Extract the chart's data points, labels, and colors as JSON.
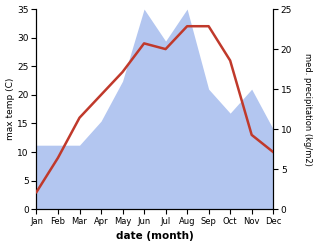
{
  "months": [
    "Jan",
    "Feb",
    "Mar",
    "Apr",
    "May",
    "Jun",
    "Jul",
    "Aug",
    "Sep",
    "Oct",
    "Nov",
    "Dec"
  ],
  "temperature": [
    3,
    9,
    16,
    20,
    24,
    29,
    28,
    32,
    32,
    26,
    13,
    10
  ],
  "precipitation": [
    8,
    8,
    8,
    11,
    16,
    25,
    21,
    25,
    15,
    12,
    15,
    10
  ],
  "temp_color": "#c0392b",
  "precip_color": "#b3c6f0",
  "ylim_temp": [
    0,
    35
  ],
  "ylim_precip": [
    0,
    25
  ],
  "ylabel_left": "max temp (C)",
  "ylabel_right": "med. precipitation (kg/m2)",
  "xlabel": "date (month)",
  "temp_yticks": [
    0,
    5,
    10,
    15,
    20,
    25,
    30,
    35
  ],
  "precip_yticks": [
    0,
    5,
    10,
    15,
    20,
    25
  ]
}
